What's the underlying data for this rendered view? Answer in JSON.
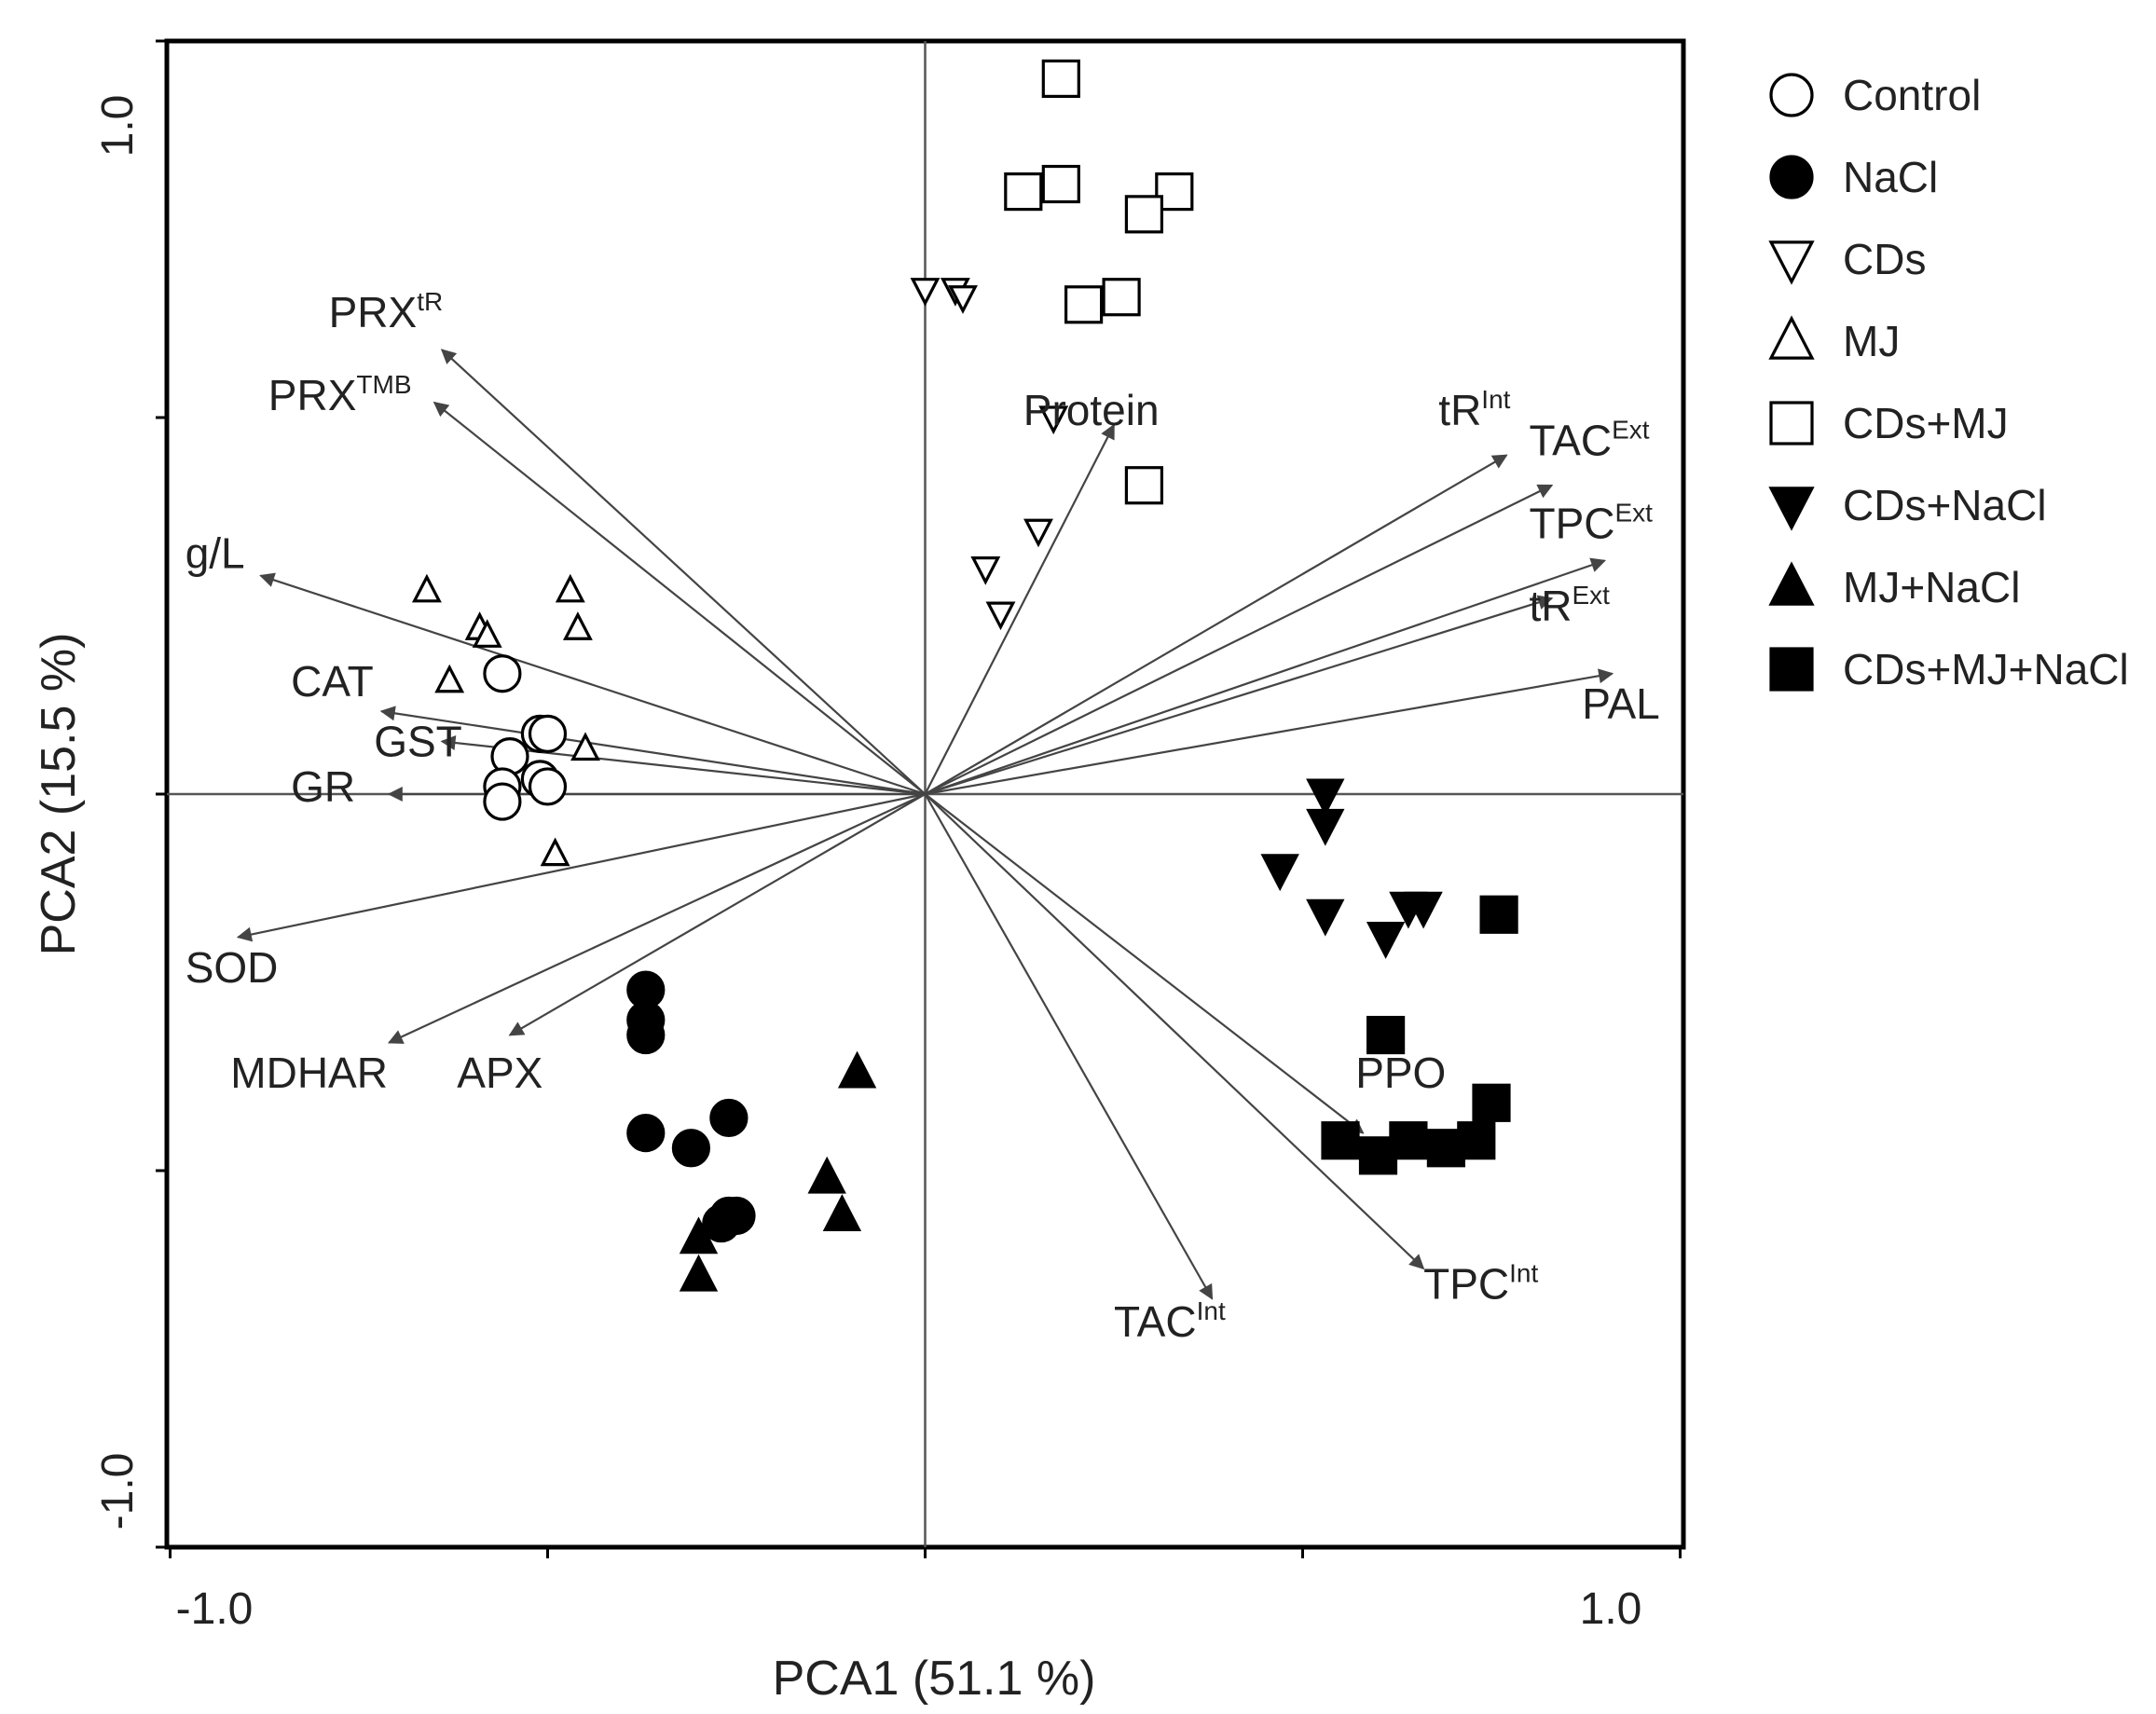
{
  "chart_data": {
    "type": "scatter",
    "subtype": "pca-biplot",
    "xlabel": "PCA1 (51.1 %)",
    "ylabel": "PCA2 (15.5 %)",
    "xlim": [
      -1.0,
      1.0
    ],
    "ylim": [
      -1.0,
      1.0
    ],
    "x_tick_labels": [
      "-1.0",
      "1.0"
    ],
    "y_tick_labels": [
      "-1.0",
      "1.0"
    ],
    "grid": false,
    "legend_position": "right",
    "colors": {
      "ink": "#000000",
      "arrow": "#444444",
      "box": "#000000"
    },
    "legend": [
      {
        "name": "Control",
        "marker": "circle-open"
      },
      {
        "name": "NaCl",
        "marker": "circle-filled"
      },
      {
        "name": "CDs",
        "marker": "triangle-down-open"
      },
      {
        "name": "MJ",
        "marker": "triangle-up-open"
      },
      {
        "name": "CDs+MJ",
        "marker": "square-open"
      },
      {
        "name": "CDs+NaCl",
        "marker": "triangle-down-filled"
      },
      {
        "name": "MJ+NaCl",
        "marker": "triangle-up-filled"
      },
      {
        "name": "CDs+MJ+NaCl",
        "marker": "square-filled"
      }
    ],
    "series": [
      {
        "name": "Control",
        "marker": "circle-open",
        "size": "large",
        "points": [
          [
            -0.56,
            0.16
          ],
          [
            -0.51,
            0.08
          ],
          [
            -0.5,
            0.08
          ],
          [
            -0.55,
            0.05
          ],
          [
            -0.51,
            0.02
          ],
          [
            -0.5,
            0.01
          ],
          [
            -0.56,
            0.01
          ],
          [
            -0.56,
            -0.01
          ]
        ]
      },
      {
        "name": "NaCl",
        "marker": "circle-filled",
        "size": "large",
        "points": [
          [
            -0.37,
            -0.26
          ],
          [
            -0.37,
            -0.3
          ],
          [
            -0.37,
            -0.32
          ],
          [
            -0.26,
            -0.43
          ],
          [
            -0.37,
            -0.45
          ],
          [
            -0.31,
            -0.47
          ],
          [
            -0.26,
            -0.56
          ],
          [
            -0.25,
            -0.56
          ],
          [
            -0.27,
            -0.57
          ]
        ]
      },
      {
        "name": "CDs",
        "marker": "triangle-down-open",
        "size": "medium",
        "points": [
          [
            0.0,
            0.67
          ],
          [
            0.04,
            0.67
          ],
          [
            0.05,
            0.66
          ],
          [
            0.17,
            0.5
          ],
          [
            0.15,
            0.35
          ],
          [
            0.08,
            0.3
          ],
          [
            0.1,
            0.24
          ]
        ]
      },
      {
        "name": "MJ",
        "marker": "triangle-up-open",
        "size": "medium",
        "points": [
          [
            -0.66,
            0.27
          ],
          [
            -0.47,
            0.27
          ],
          [
            -0.59,
            0.22
          ],
          [
            -0.58,
            0.21
          ],
          [
            -0.46,
            0.22
          ],
          [
            -0.63,
            0.15
          ],
          [
            -0.45,
            0.06
          ],
          [
            -0.49,
            -0.08
          ]
        ]
      },
      {
        "name": "CDs+MJ",
        "marker": "square-open",
        "size": "large",
        "points": [
          [
            0.18,
            0.95
          ],
          [
            0.18,
            0.81
          ],
          [
            0.13,
            0.8
          ],
          [
            0.33,
            0.8
          ],
          [
            0.29,
            0.77
          ],
          [
            0.26,
            0.66
          ],
          [
            0.21,
            0.65
          ],
          [
            0.29,
            0.41
          ]
        ]
      },
      {
        "name": "CDs+NaCl",
        "marker": "triangle-down-filled",
        "size": "large",
        "points": [
          [
            0.53,
            0.0
          ],
          [
            0.53,
            -0.04
          ],
          [
            0.47,
            -0.1
          ],
          [
            0.53,
            -0.16
          ],
          [
            0.64,
            -0.15
          ],
          [
            0.66,
            -0.15
          ],
          [
            0.61,
            -0.19
          ]
        ]
      },
      {
        "name": "MJ+NaCl",
        "marker": "triangle-up-filled",
        "size": "large",
        "points": [
          [
            -0.09,
            -0.37
          ],
          [
            -0.13,
            -0.51
          ],
          [
            -0.11,
            -0.56
          ],
          [
            -0.3,
            -0.59
          ],
          [
            -0.3,
            -0.64
          ]
        ]
      },
      {
        "name": "CDs+MJ+NaCl",
        "marker": "square-filled",
        "size": "large",
        "points": [
          [
            0.76,
            -0.16
          ],
          [
            0.61,
            -0.32
          ],
          [
            0.75,
            -0.41
          ],
          [
            0.73,
            -0.46
          ],
          [
            0.55,
            -0.46
          ],
          [
            0.6,
            -0.48
          ],
          [
            0.64,
            -0.46
          ],
          [
            0.69,
            -0.47
          ]
        ]
      }
    ],
    "loadings": [
      {
        "label": "PRX",
        "sup": "tR",
        "vec": [
          -0.64,
          0.59
        ],
        "text_at": [
          -0.79,
          0.62
        ]
      },
      {
        "label": "PRX",
        "sup": "TMB",
        "vec": [
          -0.65,
          0.52
        ],
        "text_at": [
          -0.87,
          0.51
        ]
      },
      {
        "label": "g/L",
        "sup": "",
        "vec": [
          -0.88,
          0.29
        ],
        "text_at": [
          -0.98,
          0.3
        ]
      },
      {
        "label": "CAT",
        "sup": "",
        "vec": [
          -0.72,
          0.11
        ],
        "text_at": [
          -0.84,
          0.13
        ]
      },
      {
        "label": "GST",
        "sup": "",
        "vec": [
          -0.64,
          0.07
        ],
        "text_at": [
          -0.73,
          0.05
        ]
      },
      {
        "label": "GR",
        "sup": "",
        "vec": [
          -0.71,
          0.0
        ],
        "text_at": [
          -0.84,
          -0.01
        ]
      },
      {
        "label": "SOD",
        "sup": "",
        "vec": [
          -0.91,
          -0.19
        ],
        "text_at": [
          -0.98,
          -0.25
        ]
      },
      {
        "label": "MDHAR",
        "sup": "",
        "vec": [
          -0.71,
          -0.33
        ],
        "text_at": [
          -0.92,
          -0.39
        ]
      },
      {
        "label": "APX",
        "sup": "",
        "vec": [
          -0.55,
          -0.32
        ],
        "text_at": [
          -0.62,
          -0.39
        ]
      },
      {
        "label": "Protein",
        "sup": "",
        "vec": [
          0.25,
          0.49
        ],
        "text_at": [
          0.13,
          0.49
        ]
      },
      {
        "label": "tR",
        "sup": "Int",
        "vec": [
          0.77,
          0.45
        ],
        "text_at": [
          0.68,
          0.49
        ]
      },
      {
        "label": "TAC",
        "sup": "Ext",
        "vec": [
          0.83,
          0.41
        ],
        "text_at": [
          0.8,
          0.45
        ]
      },
      {
        "label": "TPC",
        "sup": "Ext",
        "vec": [
          0.9,
          0.31
        ],
        "text_at": [
          0.8,
          0.34
        ]
      },
      {
        "label": "tR",
        "sup": "Ext",
        "vec": [
          0.83,
          0.26
        ],
        "text_at": [
          0.8,
          0.23
        ]
      },
      {
        "label": "PAL",
        "sup": "",
        "vec": [
          0.91,
          0.16
        ],
        "text_at": [
          0.87,
          0.1
        ]
      },
      {
        "label": "PPO",
        "sup": "",
        "vec": [
          0.58,
          -0.45
        ],
        "text_at": [
          0.57,
          -0.39
        ]
      },
      {
        "label": "TPC",
        "sup": "Int",
        "vec": [
          0.66,
          -0.63
        ],
        "text_at": [
          0.66,
          -0.67
        ]
      },
      {
        "label": "TAC",
        "sup": "Int",
        "vec": [
          0.38,
          -0.67
        ],
        "text_at": [
          0.25,
          -0.72
        ]
      }
    ]
  }
}
